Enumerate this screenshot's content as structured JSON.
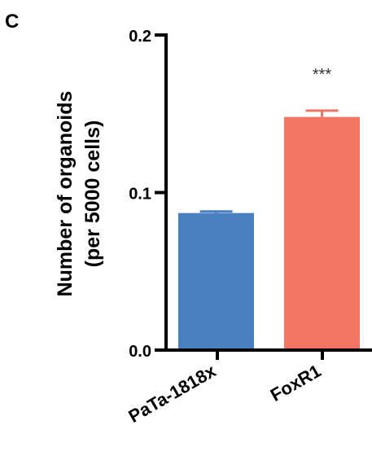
{
  "panel_label": "C",
  "chart_data": {
    "type": "bar",
    "categories": [
      "PaTa-1818x",
      "FoxR1"
    ],
    "values": [
      0.087,
      0.148
    ],
    "errors": [
      0.001,
      0.004
    ],
    "colors": [
      "#4a7fc1",
      "#f07563"
    ],
    "annotations": [
      "",
      "***"
    ],
    "ylabel_line1": "Number of organoids",
    "ylabel_line2": "(per 5000 cells)",
    "ylim": [
      0,
      0.2
    ],
    "yticks": [
      0.0,
      0.1,
      0.2
    ],
    "ytick_labels": [
      "0.0",
      "0.1",
      "0.2"
    ],
    "grid": false
  }
}
